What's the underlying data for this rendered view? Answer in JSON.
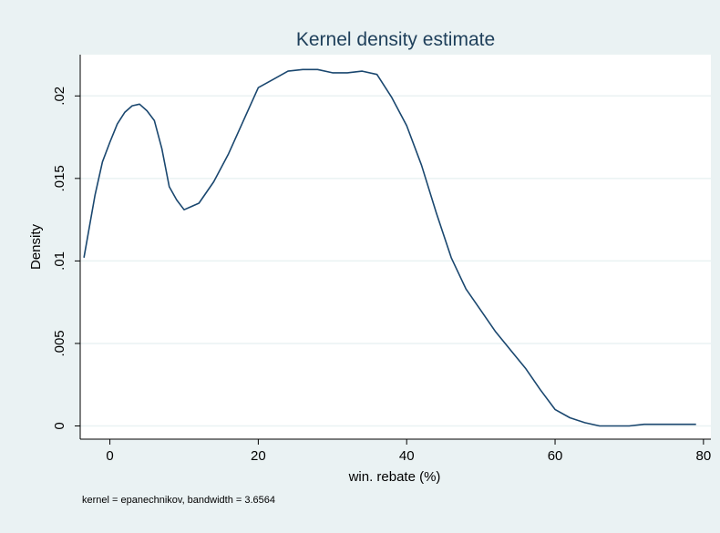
{
  "chart_data": {
    "type": "line",
    "title": "Kernel density estimate",
    "xlabel": "win. rebate (%)",
    "ylabel": "Density",
    "note": "kernel = epanechnikov, bandwidth = 3.6564",
    "xlim": [
      -4,
      81
    ],
    "ylim": [
      -0.0008,
      0.0225
    ],
    "x_ticks": [
      0,
      20,
      40,
      60,
      80
    ],
    "x_tick_labels": [
      "0",
      "20",
      "40",
      "60",
      "80"
    ],
    "y_ticks": [
      0,
      0.005,
      0.01,
      0.015,
      0.02
    ],
    "y_tick_labels": [
      "0",
      ".005",
      ".01",
      ".015",
      ".02"
    ],
    "grid": "horizontal",
    "legend": "none",
    "colors": {
      "background": "#eaf2f3",
      "plot_area": "#ffffff",
      "line": "#1a476f",
      "grid": "#eaf2f3",
      "title": "#1e3f5a"
    },
    "series": [
      {
        "x": [
          -3.5,
          -2,
          -1,
          0,
          1,
          2,
          3,
          4,
          5,
          6,
          7,
          8,
          9,
          10,
          11,
          12,
          14,
          16,
          18,
          20,
          22,
          24,
          26,
          28,
          30,
          32,
          34,
          36,
          38,
          40,
          42,
          44,
          46,
          48,
          50,
          52,
          54,
          56,
          58,
          60,
          62,
          64,
          66,
          68,
          70,
          72,
          74,
          76,
          78,
          79
        ],
        "y": [
          0.0102,
          0.014,
          0.016,
          0.0172,
          0.0183,
          0.019,
          0.0194,
          0.0195,
          0.0191,
          0.0185,
          0.0168,
          0.0145,
          0.0137,
          0.0131,
          0.0133,
          0.0135,
          0.0148,
          0.0165,
          0.0185,
          0.0205,
          0.021,
          0.0215,
          0.0216,
          0.0216,
          0.0214,
          0.0214,
          0.0215,
          0.0213,
          0.0199,
          0.0182,
          0.0158,
          0.0129,
          0.0102,
          0.0083,
          0.007,
          0.0057,
          0.0046,
          0.0035,
          0.0022,
          0.001,
          0.0005,
          0.0002,
          0.0,
          0.0,
          0.0,
          0.0001,
          0.0001,
          0.0001,
          0.0001,
          0.0001
        ]
      }
    ]
  }
}
